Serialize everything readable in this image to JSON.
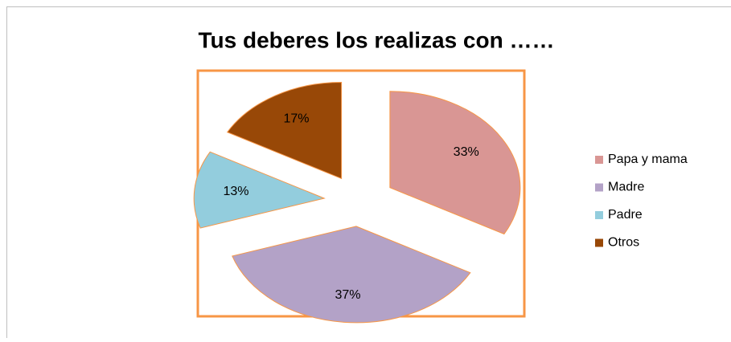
{
  "chart_data": {
    "type": "pie",
    "title": "Tus deberes los realizas con ……",
    "categories": [
      "Papa y mama",
      "Madre",
      "Padre",
      "Otros"
    ],
    "values": [
      33,
      37,
      13,
      17
    ],
    "value_labels": [
      "33%",
      "37%",
      "13%",
      "17%"
    ],
    "colors": [
      "#d99694",
      "#b3a2c7",
      "#93cddd",
      "#984807"
    ],
    "legend": "right"
  }
}
